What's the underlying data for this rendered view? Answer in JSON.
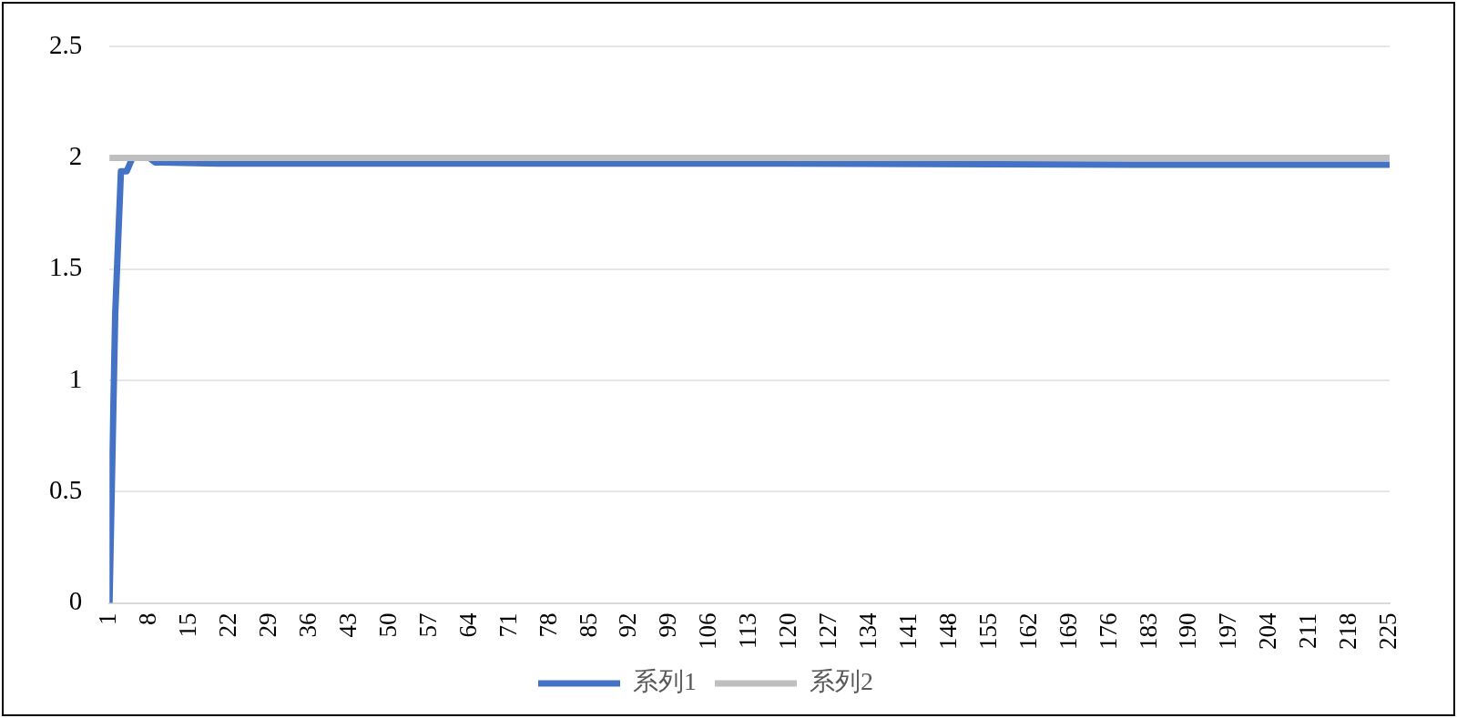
{
  "chart_data": {
    "type": "line",
    "xlim": [
      1,
      225
    ],
    "xticks": [
      1,
      8,
      15,
      22,
      29,
      36,
      43,
      50,
      57,
      64,
      71,
      78,
      85,
      92,
      99,
      106,
      113,
      120,
      127,
      134,
      141,
      148,
      155,
      162,
      169,
      176,
      183,
      190,
      197,
      204,
      211,
      218,
      225
    ],
    "ylim": [
      0,
      2.5
    ],
    "yticks": [
      0,
      0.5,
      1,
      1.5,
      2,
      2.5
    ],
    "series": [
      {
        "name": "系列1",
        "color": "#4472c4",
        "x": [
          1,
          2,
          3,
          4,
          5,
          8,
          9,
          10,
          20,
          60,
          120,
          180,
          225
        ],
        "values": [
          0,
          1.3,
          1.94,
          1.94,
          2.0,
          2.0,
          1.98,
          1.98,
          1.975,
          1.975,
          1.975,
          1.97,
          1.97
        ]
      },
      {
        "name": "系列2",
        "color": "#bfbfbf",
        "x": [
          1,
          225
        ],
        "values": [
          2,
          2
        ]
      }
    ],
    "grid": "y",
    "legend": "bottom",
    "marker": "none",
    "line_style": "solid"
  }
}
